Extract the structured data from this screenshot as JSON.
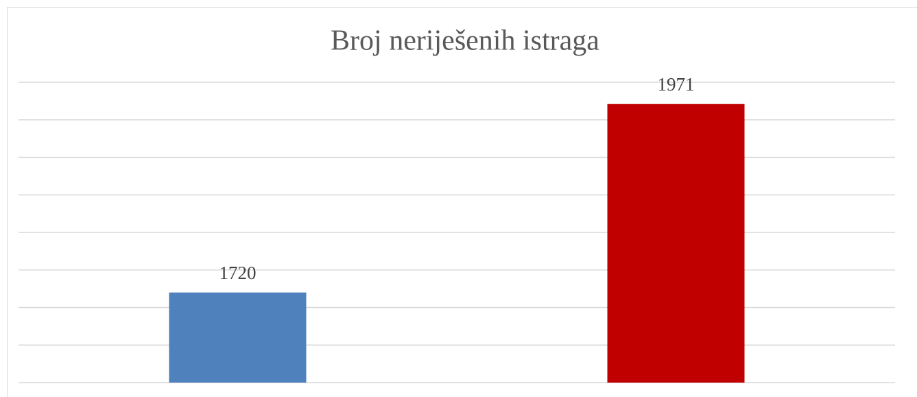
{
  "chart_data": {
    "type": "bar",
    "title": "Broj neriješenih istraga",
    "categories": [
      null,
      null
    ],
    "values": [
      1720,
      1971
    ],
    "colors": [
      "#4f81bd",
      "#c00000"
    ],
    "ylim": [
      1600,
      2000
    ],
    "yticks": [
      1600,
      1650,
      1700,
      1750,
      1800,
      1850,
      1900,
      1950,
      2000
    ],
    "grid": true
  }
}
